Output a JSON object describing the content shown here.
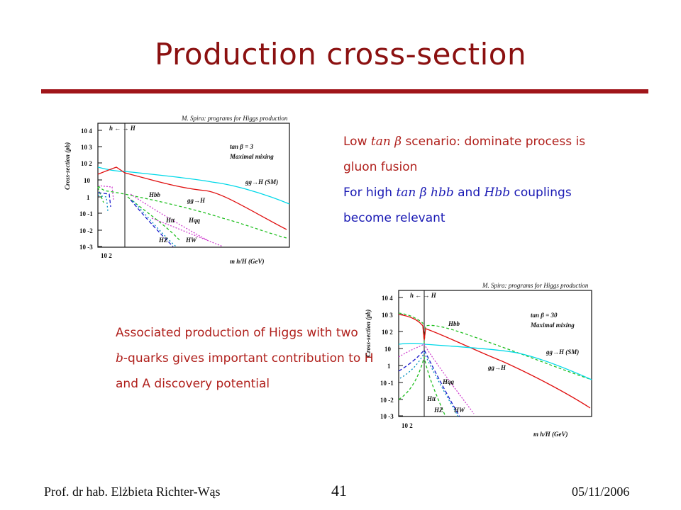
{
  "slide": {
    "title": "Production cross-section",
    "low_line1_a": "Low ",
    "low_line1_math": "tan β",
    "low_line1_b": " scenario:  dominate process is",
    "low_line2": "gluon fusion",
    "high_line1_a": "For high ",
    "high_line1_math1": "tan β",
    "high_line1_math2": "hbb",
    "high_line1_b": " and ",
    "high_line1_math3": "Hbb",
    "high_line1_c": " couplings",
    "high_line2": "become relevant",
    "assoc_line1": "Associated production of Higgs with two",
    "assoc_line2_math": "b",
    "assoc_line2": "-quarks gives important contribution to H",
    "assoc_line3": "and A discovery potential"
  },
  "footer": {
    "author": "Prof. dr hab. Elżbieta Richter-Wąs",
    "page": "41",
    "date": "05/11/2006"
  },
  "plots": [
    {
      "header": "M. Spira: programs for Higgs production",
      "ylabel": "Cross-section (pb)",
      "xlabel": "m h/H (GeV)",
      "xtick": "10 2",
      "yticks": [
        "10 4",
        "10 3",
        "10 2",
        "10",
        "1",
        "10 -1",
        "10 -2",
        "10 -3"
      ],
      "region_labels": "h ←  → H",
      "scenario": "tan β = 3",
      "mixing": "Maximal mixing",
      "curve_labels": [
        "gg→H (SM)",
        "Hbb",
        "gg→H",
        "Htt",
        "Hqq",
        "HZ",
        "HW"
      ]
    },
    {
      "header": "M. Spira: programs for Higgs production",
      "ylabel": "Cross-section (pb)",
      "xlabel": "m h/H (GeV)",
      "xtick": "10 2",
      "yticks": [
        "10 4",
        "10 3",
        "10 2",
        "10",
        "1",
        "10 -1",
        "10 -2",
        "10 -3"
      ],
      "region_labels": "h ←  → H",
      "scenario": "tan β = 30",
      "mixing": "Maximal mixing",
      "curve_labels": [
        "Hbb",
        "gg→H (SM)",
        "gg→H",
        "Hqq",
        "Htt",
        "HZ",
        "HW"
      ]
    }
  ]
}
